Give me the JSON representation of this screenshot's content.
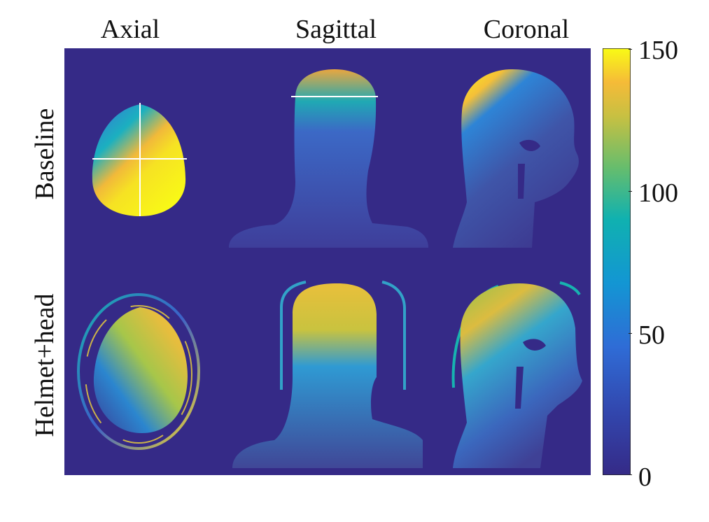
{
  "columns": [
    "Axial",
    "Sagittal",
    "Coronal"
  ],
  "rows": [
    "Baseline",
    "Helmet+head"
  ],
  "colorbar": {
    "ticks": [
      "150",
      "100",
      "50",
      "0"
    ],
    "min": 0,
    "max": 150
  },
  "colors": {
    "background_field": "#352a87",
    "low": "#352a87",
    "mid_low": "#2c6fc7",
    "mid": "#15b1b5",
    "mid_high": "#8bc24f",
    "high": "#f5bb38",
    "max": "#f9fb15",
    "marker_lines": "#ffffff"
  }
}
